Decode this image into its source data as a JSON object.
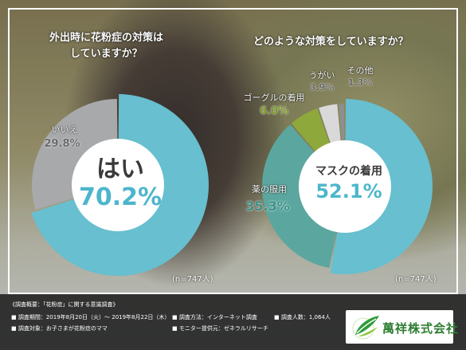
{
  "questions": {
    "q1_line1": "外出時に花粉症の対策は",
    "q1_line2": "していますか？",
    "q2": "どのような対策をしていますか？"
  },
  "chart_data": [
    {
      "type": "pie",
      "title": "外出時に花粉症の対策はしていますか？",
      "categories": [
        "はい",
        "いいえ"
      ],
      "values": [
        70.2,
        29.8
      ],
      "labels": [
        "70.2%",
        "29.8%"
      ],
      "colors": [
        "#67bfcf",
        "#a8a9ab"
      ],
      "sample": "(n=747人)"
    },
    {
      "type": "pie",
      "title": "どのような対策をしていますか？",
      "categories": [
        "マスクの着用",
        "薬の服用",
        "ゴーグルの着用",
        "うがい",
        "その他"
      ],
      "values": [
        52.1,
        35.3,
        6.0,
        3.9,
        1.3
      ],
      "labels": [
        "52.1%",
        "35.3%",
        "6.0%",
        "3.9%",
        "1.3%"
      ],
      "colors": [
        "#67bfcf",
        "#5ba79f",
        "#8ea83c",
        "#d9d9d9",
        "#8f8f8f"
      ],
      "sample": "(n=747人)"
    }
  ],
  "footer": {
    "title": "《調査概要：「花粉症」に関する意識調査》",
    "period": "■ 調査期間：2019年8月20日（火）～ 2019年8月22日（木）",
    "method": "■ 調査方法：インターネット調査",
    "count": "■ 調査人数：1,064人",
    "target": "■ 調査対象：お子さまが花粉症のママ",
    "monitor": "■ モニター提供元：ゼネラルリサーチ"
  },
  "logo": {
    "text": "萬祥株式会社",
    "icon": "leaf-logo-icon"
  }
}
